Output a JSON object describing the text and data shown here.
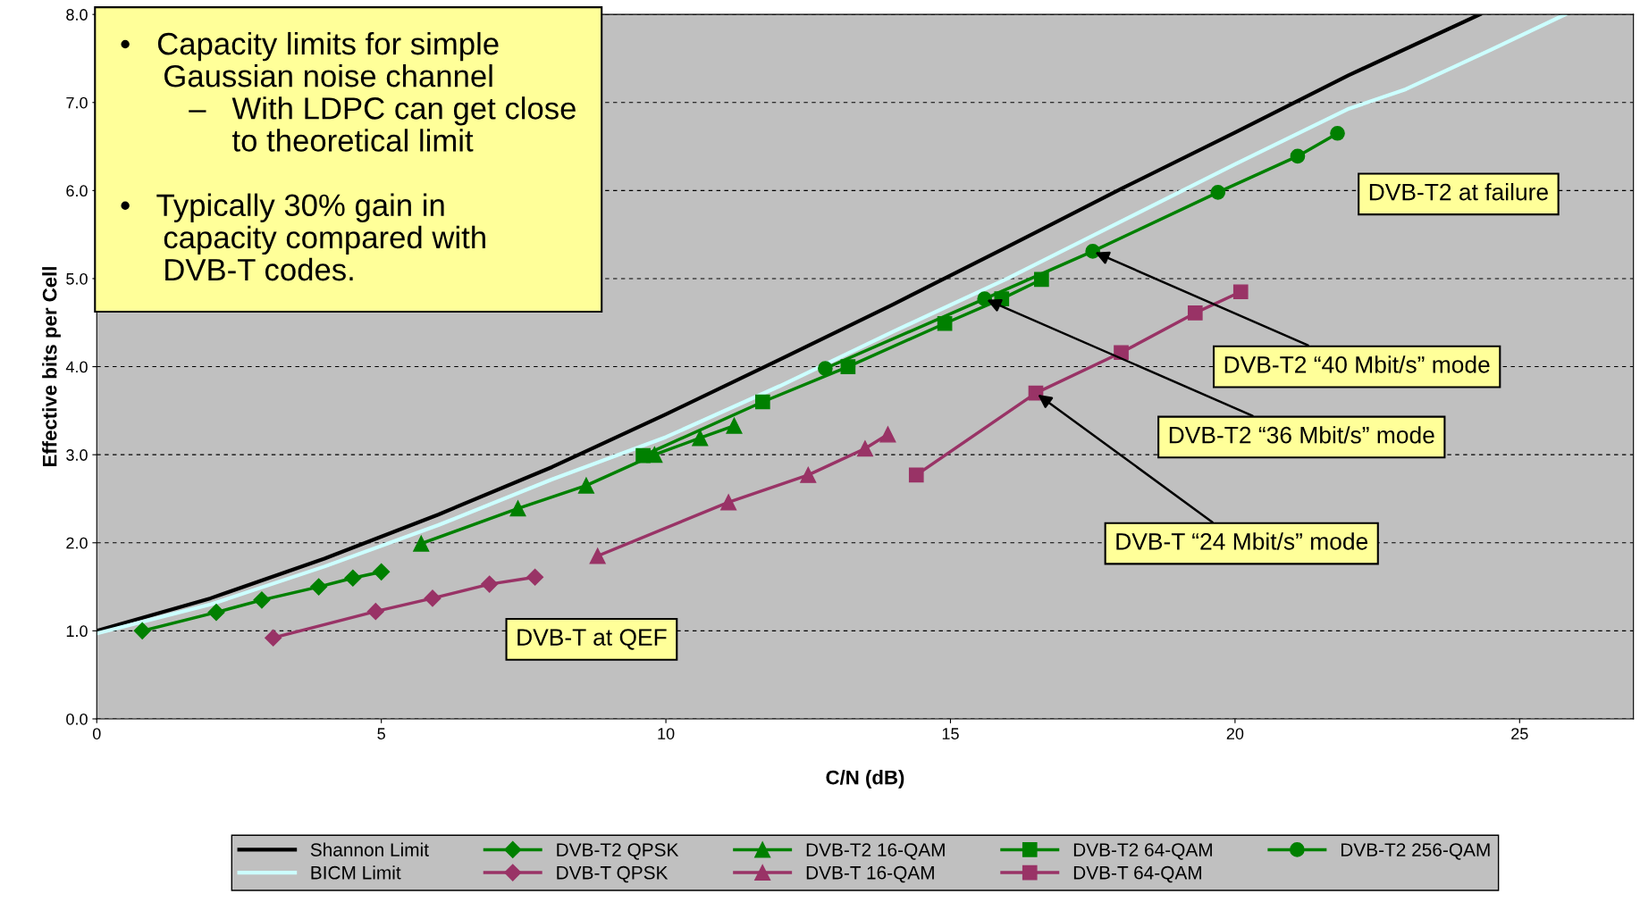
{
  "chart_data": {
    "type": "line",
    "xlabel": "C/N (dB)",
    "ylabel": "Effective bits per Cell",
    "xlim": [
      0,
      27
    ],
    "ylim": [
      0,
      8
    ],
    "xticks": [
      0,
      5,
      10,
      15,
      20,
      25
    ],
    "yticks": [
      {
        "value": 0,
        "label": "0.0"
      },
      {
        "value": 1,
        "label": "1.0"
      },
      {
        "value": 2,
        "label": "2.0"
      },
      {
        "value": 3,
        "label": "3.0"
      },
      {
        "value": 4,
        "label": "4.0"
      },
      {
        "value": 5,
        "label": "5.0"
      },
      {
        "value": 6,
        "label": "6.0"
      },
      {
        "value": 7,
        "label": "7.0"
      },
      {
        "value": 8,
        "label": "8.0"
      }
    ],
    "grid": "y",
    "legend": "bottom",
    "series": [
      {
        "name": "Shannon Limit",
        "color": "#000000",
        "marker": "none",
        "x": [
          0,
          2,
          4,
          6,
          8,
          10,
          12,
          14,
          16,
          18,
          20,
          22,
          24.3
        ],
        "values": [
          1.0,
          1.37,
          1.82,
          2.32,
          2.86,
          3.46,
          4.08,
          4.71,
          5.36,
          6.02,
          6.66,
          7.31,
          8.0
        ]
      },
      {
        "name": "BICM Limit",
        "color": "#ccffff",
        "marker": "none",
        "x": [
          0,
          2,
          4,
          6,
          8,
          10,
          12,
          14,
          16,
          18,
          20,
          22,
          23,
          24.5,
          25.8
        ],
        "values": [
          0.97,
          1.3,
          1.73,
          2.2,
          2.72,
          3.2,
          3.78,
          4.4,
          5.0,
          5.65,
          6.3,
          6.93,
          7.15,
          7.6,
          8.0
        ]
      },
      {
        "name": "DVB-T2 QPSK",
        "color": "#008000",
        "marker": "diamond",
        "x": [
          0.8,
          2.1,
          2.9,
          3.9,
          4.5,
          5.0
        ],
        "values": [
          1.0,
          1.21,
          1.35,
          1.5,
          1.6,
          1.67
        ]
      },
      {
        "name": "DVB-T QPSK",
        "color": "#993366",
        "marker": "diamond",
        "x": [
          3.1,
          4.9,
          5.9,
          6.9,
          7.7
        ],
        "values": [
          0.92,
          1.22,
          1.37,
          1.53,
          1.61
        ]
      },
      {
        "name": "DVB-T2 16-QAM",
        "color": "#008000",
        "marker": "triangle",
        "x": [
          5.7,
          7.4,
          8.6,
          9.8,
          10.6,
          11.2
        ],
        "values": [
          1.99,
          2.39,
          2.65,
          3.0,
          3.19,
          3.33
        ]
      },
      {
        "name": "DVB-T 16-QAM",
        "color": "#993366",
        "marker": "triangle",
        "x": [
          8.8,
          11.1,
          12.5,
          13.5,
          13.9
        ],
        "values": [
          1.85,
          2.46,
          2.77,
          3.07,
          3.23
        ]
      },
      {
        "name": "DVB-T2 64-QAM",
        "color": "#008000",
        "marker": "square",
        "x": [
          9.6,
          11.7,
          13.2,
          14.9,
          15.9,
          16.6
        ],
        "values": [
          2.99,
          3.6,
          4.0,
          4.49,
          4.77,
          4.99
        ]
      },
      {
        "name": "DVB-T 64-QAM",
        "color": "#993366",
        "marker": "square",
        "x": [
          14.4,
          16.5,
          18.0,
          19.3,
          20.1
        ],
        "values": [
          2.77,
          3.7,
          4.16,
          4.61,
          4.85
        ]
      },
      {
        "name": "DVB-T2 256-QAM",
        "color": "#008000",
        "marker": "circle",
        "x": [
          12.8,
          15.6,
          17.5,
          19.7,
          21.1,
          21.8
        ],
        "values": [
          3.98,
          4.77,
          5.31,
          5.98,
          6.39,
          6.65
        ]
      }
    ],
    "annotations": [
      "•   Capacity limits for simple\n     Gaussian noise channel\n        –   With LDPC can get close\n             to theoretical limit\n\n•   Typically 30% gain in\n     capacity compared with\n     DVB-T codes.",
      "DVB-T2 at failure",
      "DVB-T at QEF",
      {
        "text": "DVB-T2 “40 Mbit/s” mode",
        "x": 17.5,
        "y": 5.31
      },
      {
        "text": "DVB-T2 “36 Mbit/s” mode",
        "x": 15.6,
        "y": 4.77
      },
      {
        "text": "DVB-T “24 Mbit/s” mode",
        "x": 16.5,
        "y": 3.7
      }
    ]
  }
}
